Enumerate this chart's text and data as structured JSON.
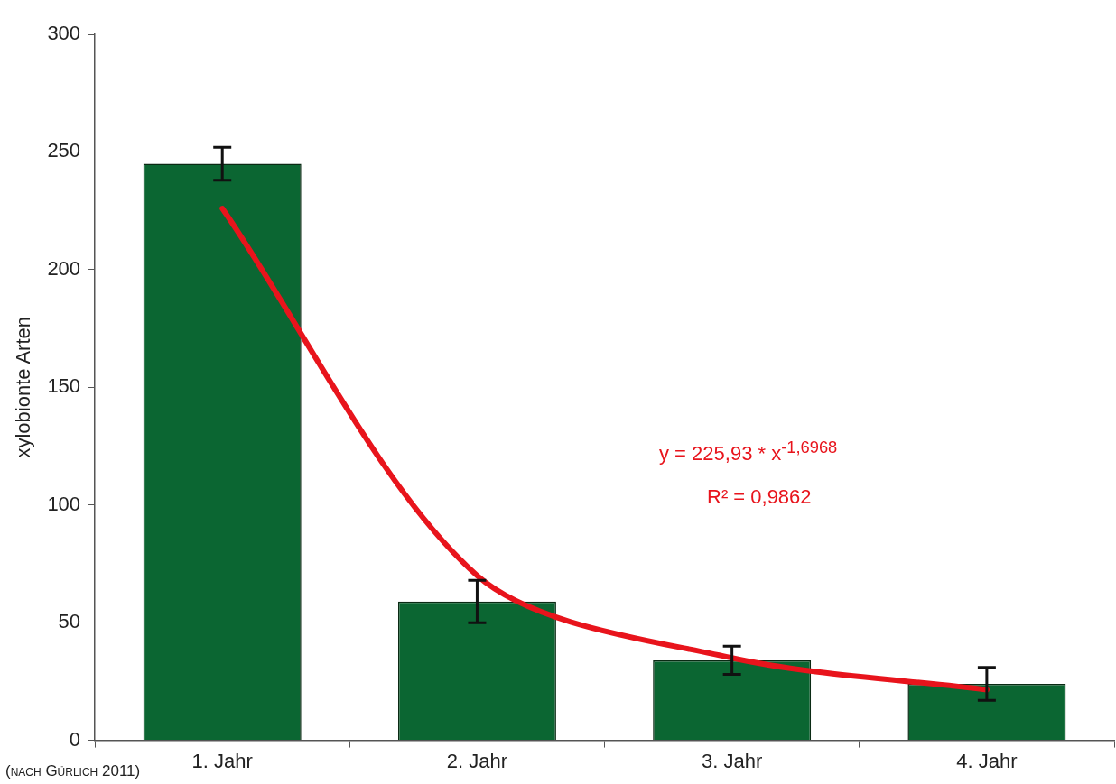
{
  "chart_data": {
    "type": "bar",
    "ylabel": "xylobionte Arten",
    "categories": [
      "1. Jahr",
      "2. Jahr",
      "3. Jahr",
      "4. Jahr"
    ],
    "ylim": [
      0,
      300
    ],
    "yticks": [
      0,
      50,
      100,
      150,
      200,
      250,
      300
    ],
    "grid": false,
    "legend": false,
    "series": [
      {
        "color": "#0b6632",
        "values": [
          245,
          59,
          34,
          24
        ],
        "errors": [
          7,
          9,
          6,
          7
        ]
      },
      {
        "type": "line",
        "color": "#e8141c",
        "marker": "none",
        "line_style": "solid",
        "values": [
          226,
          70,
          35,
          21.5
        ]
      }
    ],
    "annotations": [
      "y = 225,93 * x$^{-1,6968}$",
      "R² = 0,9862",
      "(nach Gürlich 2011)"
    ]
  }
}
